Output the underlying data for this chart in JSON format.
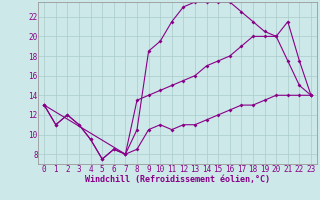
{
  "xlabel": "Windchill (Refroidissement éolien,°C)",
  "bg_color": "#cce8e8",
  "line_color": "#880088",
  "grid_color": "#aacccc",
  "xlim": [
    -0.5,
    23.5
  ],
  "ylim": [
    7.0,
    23.5
  ],
  "xticks": [
    0,
    1,
    2,
    3,
    4,
    5,
    6,
    7,
    8,
    9,
    10,
    11,
    12,
    13,
    14,
    15,
    16,
    17,
    18,
    19,
    20,
    21,
    22,
    23
  ],
  "yticks": [
    8,
    10,
    12,
    14,
    16,
    18,
    20,
    22
  ],
  "curve1_x": [
    0,
    1,
    2,
    3,
    4,
    5,
    6,
    7,
    8,
    9,
    10,
    11,
    12,
    13,
    14,
    15,
    16,
    17,
    18,
    19,
    20,
    21,
    22,
    23
  ],
  "curve1_y": [
    13,
    11,
    12,
    11,
    9.5,
    7.5,
    8.5,
    8.0,
    8.5,
    10.5,
    11.0,
    10.5,
    11.0,
    11.0,
    11.5,
    12.0,
    12.5,
    13.0,
    13.0,
    13.5,
    14.0,
    14.0,
    14.0,
    14.0
  ],
  "curve2_x": [
    0,
    1,
    2,
    3,
    4,
    5,
    6,
    7,
    8,
    9,
    10,
    11,
    12,
    13,
    14,
    15,
    16,
    17,
    18,
    19,
    20,
    21,
    22,
    23
  ],
  "curve2_y": [
    13,
    11,
    12,
    11,
    9.5,
    7.5,
    8.5,
    8.0,
    10.5,
    18.5,
    19.5,
    21.5,
    23.0,
    23.5,
    23.5,
    23.5,
    23.5,
    22.5,
    21.5,
    20.5,
    20.0,
    17.5,
    15.0,
    14.0
  ],
  "curve3_x": [
    0,
    7,
    8,
    9,
    10,
    11,
    12,
    13,
    14,
    15,
    16,
    17,
    18,
    19,
    20,
    21,
    22,
    23
  ],
  "curve3_y": [
    13,
    8.0,
    13.5,
    14.0,
    14.5,
    15.0,
    15.5,
    16.0,
    17.0,
    17.5,
    18.0,
    19.0,
    20.0,
    20.0,
    20.0,
    21.5,
    17.5,
    14.0
  ],
  "xlabel_fontsize": 6.0,
  "tick_fontsize": 5.5,
  "linewidth": 0.8,
  "markersize": 2.0
}
